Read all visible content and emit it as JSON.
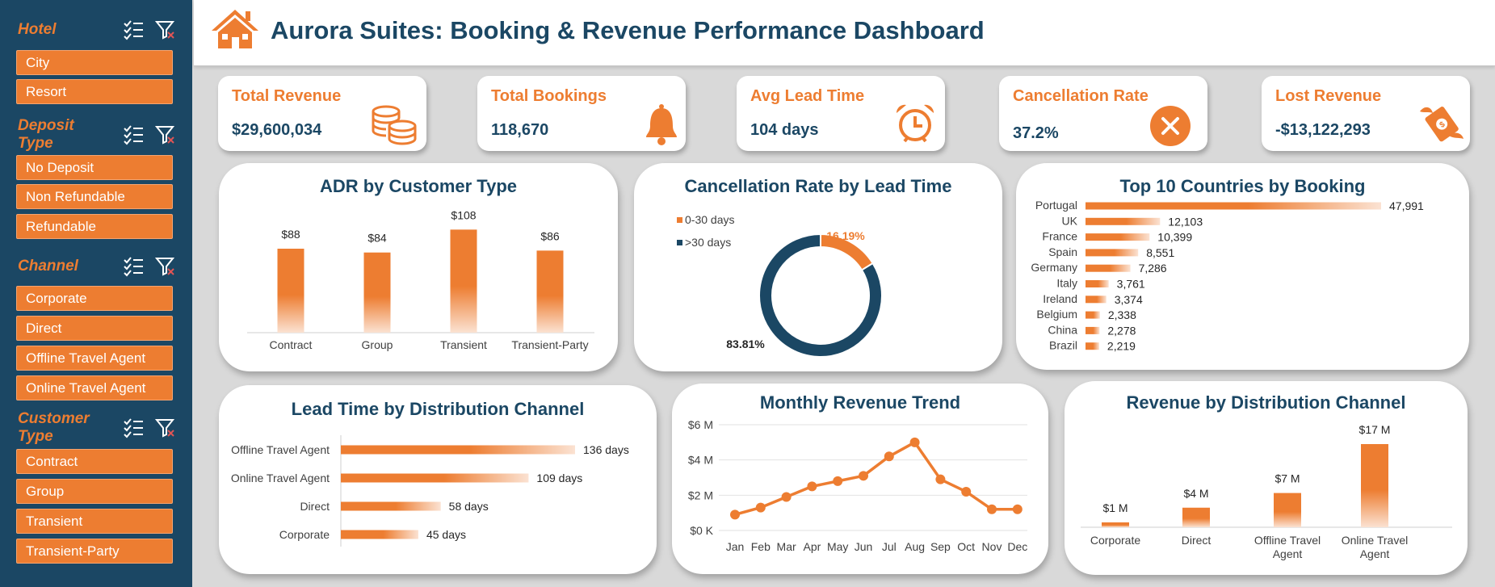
{
  "header": {
    "title": "Aurora Suites: Booking & Revenue Performance Dashboard"
  },
  "colors": {
    "navy": "#1b4764",
    "orange": "#ed7d31",
    "background": "#d9d9d9"
  },
  "slicers": [
    {
      "title": "Hotel",
      "items": [
        "City",
        "Resort"
      ]
    },
    {
      "title": "Deposit Type",
      "items": [
        "No Deposit",
        "Non Refundable",
        "Refundable"
      ]
    },
    {
      "title": "Channel",
      "items": [
        "Corporate",
        "Direct",
        "Offline Travel Agent",
        "Online Travel Agent"
      ]
    },
    {
      "title": "Customer Type",
      "items": [
        "Contract",
        "Group",
        "Transient",
        "Transient-Party"
      ]
    }
  ],
  "kpis": {
    "revenue": {
      "label": "Total Revenue",
      "value": "$29,600,034",
      "icon": "coins-icon"
    },
    "bookings": {
      "label": "Total Bookings",
      "value": "118,670",
      "icon": "bell-icon"
    },
    "lead": {
      "label": "Avg Lead Time",
      "value": "104 days",
      "icon": "alarm-clock-icon"
    },
    "cancel": {
      "label": "Cancellation Rate",
      "value": "37.2%",
      "icon": "cancel-icon"
    },
    "lost": {
      "label": "Lost Revenue",
      "value": "-$13,122,293",
      "icon": "flying-money-icon"
    }
  },
  "chart_data": [
    {
      "id": "adr",
      "type": "bar",
      "title": "ADR by Customer Type",
      "categories": [
        "Contract",
        "Group",
        "Transient",
        "Transient-Party"
      ],
      "values": [
        88,
        84,
        108,
        86
      ],
      "labels": [
        "$88",
        "$84",
        "$108",
        "$86"
      ],
      "ylim": [
        0,
        110
      ]
    },
    {
      "id": "cancel",
      "type": "pie",
      "title": "Cancellation Rate by Lead Time",
      "categories": [
        "0-30 days",
        ">30 days"
      ],
      "values": [
        16.19,
        83.81
      ],
      "labels": [
        "16.19%",
        "83.81%"
      ],
      "colors": [
        "#ed7d31",
        "#1b4764"
      ],
      "legend": "top-left"
    },
    {
      "id": "countries",
      "type": "bar",
      "orientation": "horizontal",
      "title": "Top 10 Countries by Booking",
      "categories": [
        "Portugal",
        "UK",
        "France",
        "Spain",
        "Germany",
        "Italy",
        "Ireland",
        "Belgium",
        "China",
        "Brazil"
      ],
      "values": [
        47991,
        12103,
        10399,
        8551,
        7286,
        3761,
        3374,
        2338,
        2278,
        2219
      ],
      "labels": [
        "47,991",
        "12,103",
        "10,399",
        "8,551",
        "7,286",
        "3,761",
        "3,374",
        "2,338",
        "2,278",
        "2,219"
      ]
    },
    {
      "id": "leadtime",
      "type": "bar",
      "orientation": "horizontal",
      "title": "Lead Time by Distribution Channel",
      "categories": [
        "Offline Travel Agent",
        "Online Travel Agent",
        "Direct",
        "Corporate"
      ],
      "values": [
        136,
        109,
        58,
        45
      ],
      "labels": [
        "136 days",
        "109 days",
        "58 days",
        "45 days"
      ]
    },
    {
      "id": "monthly",
      "type": "line",
      "title": "Monthly Revenue Trend",
      "categories": [
        "Jan",
        "Feb",
        "Mar",
        "Apr",
        "May",
        "Jun",
        "Jul",
        "Aug",
        "Sep",
        "Oct",
        "Nov",
        "Dec"
      ],
      "values": [
        0.9,
        1.3,
        1.9,
        2.5,
        2.8,
        3.1,
        4.2,
        5.0,
        2.9,
        2.2,
        1.2,
        1.2
      ],
      "yticks": [
        "$0 K",
        "$2 M",
        "$4 M",
        "$6 M"
      ],
      "ylim": [
        0,
        6
      ],
      "grid": true
    },
    {
      "id": "revchannel",
      "type": "bar",
      "title": "Revenue by Distribution Channel",
      "categories": [
        "Corporate",
        "Direct",
        "Offline Travel Agent",
        "Online Travel Agent"
      ],
      "category_lines": [
        [
          "Corporate"
        ],
        [
          "Direct"
        ],
        [
          "Offline Travel",
          "Agent"
        ],
        [
          "Online Travel",
          "Agent"
        ]
      ],
      "values": [
        1,
        4,
        7,
        17
      ],
      "labels": [
        "$1 M",
        "$4 M",
        "$7 M",
        "$17 M"
      ],
      "ylim": [
        0,
        17
      ]
    }
  ]
}
